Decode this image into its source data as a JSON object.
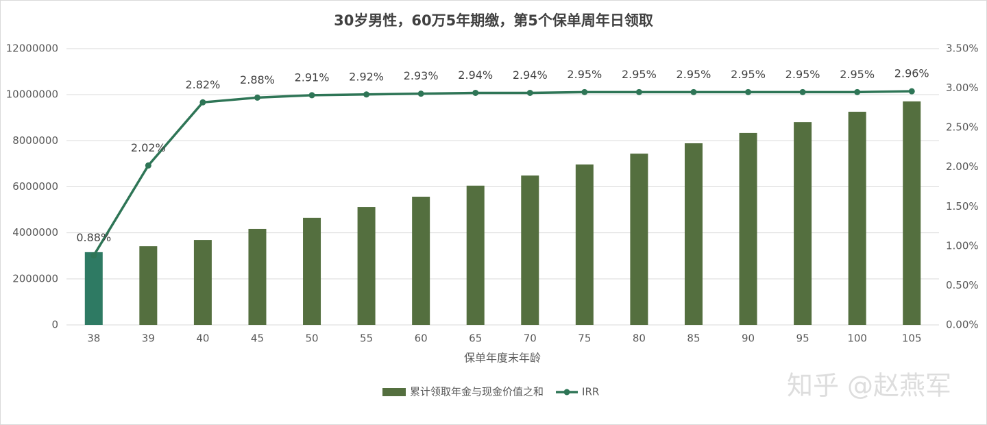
{
  "chart_data": {
    "type": "bar_line",
    "title": "30岁男性，60万5年期缴，第5个保单周年日领取",
    "x_label": "保单年度末年龄",
    "categories": [
      "38",
      "39",
      "40",
      "45",
      "50",
      "55",
      "60",
      "65",
      "70",
      "75",
      "80",
      "85",
      "90",
      "95",
      "100",
      "105"
    ],
    "series": [
      {
        "name": "累计领取年金与现金价值之和",
        "type": "bar",
        "color": "#546f3f",
        "colors": [
          "#2e7a63",
          "#546f3f",
          "#546f3f",
          "#546f3f",
          "#546f3f",
          "#546f3f",
          "#546f3f",
          "#546f3f",
          "#546f3f",
          "#546f3f",
          "#546f3f",
          "#546f3f",
          "#546f3f",
          "#546f3f",
          "#546f3f",
          "#546f3f"
        ],
        "values": [
          3160000,
          3420000,
          3690000,
          4170000,
          4650000,
          5120000,
          5570000,
          6050000,
          6490000,
          6970000,
          7440000,
          7890000,
          8340000,
          8810000,
          9260000,
          9710000
        ]
      },
      {
        "name": "IRR",
        "type": "line",
        "axis": "y2",
        "color": "#2e7556",
        "values": [
          0.88,
          2.02,
          2.82,
          2.88,
          2.91,
          2.92,
          2.93,
          2.94,
          2.94,
          2.95,
          2.95,
          2.95,
          2.95,
          2.95,
          2.95,
          2.96
        ],
        "value_labels": [
          "0.88%",
          "2.02%",
          "2.82%",
          "2.88%",
          "2.91%",
          "2.92%",
          "2.93%",
          "2.94%",
          "2.94%",
          "2.95%",
          "2.95%",
          "2.95%",
          "2.95%",
          "2.95%",
          "2.95%",
          "2.96%"
        ]
      }
    ],
    "ylim": [
      0,
      12000000
    ],
    "yticks": [
      0,
      2000000,
      4000000,
      6000000,
      8000000,
      10000000,
      12000000
    ],
    "y2lim": [
      0,
      3.5
    ],
    "y2ticks": [
      {
        "value": 0,
        "label": "0.00%"
      },
      {
        "value": 0.5,
        "label": "0.50%"
      },
      {
        "value": 1,
        "label": "1.00%"
      },
      {
        "value": 1.5,
        "label": "1.50%"
      },
      {
        "value": 2,
        "label": "2.00%"
      },
      {
        "value": 2.5,
        "label": "2.50%"
      },
      {
        "value": 3,
        "label": "3.00%"
      },
      {
        "value": 3.5,
        "label": "3.50%"
      }
    ],
    "grid": true,
    "legend": "bottom",
    "watermark": "知乎 @赵燕军"
  }
}
